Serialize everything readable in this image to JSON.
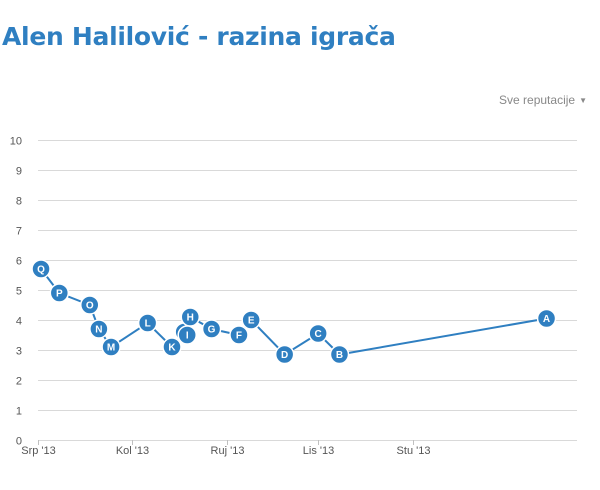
{
  "page": {
    "title": "Alen Halilović - razina igrača"
  },
  "filter": {
    "label": "Sve reputacije"
  },
  "chart_data": {
    "type": "line",
    "title": "",
    "xlabel": "",
    "ylabel": "",
    "ylim": [
      0,
      10
    ],
    "yticks": [
      0,
      1,
      2,
      3,
      4,
      5,
      6,
      7,
      8,
      9,
      10
    ],
    "xlim": [
      "2013-07-01",
      "2013-12-25"
    ],
    "xticks": [
      {
        "label": "Srp '13",
        "date": "2013-07-01"
      },
      {
        "label": "Kol '13",
        "date": "2013-08-01"
      },
      {
        "label": "Ruj '13",
        "date": "2013-09-01"
      },
      {
        "label": "Lis '13",
        "date": "2013-10-01"
      },
      {
        "label": "Stu '13",
        "date": "2013-11-01"
      }
    ],
    "grid": true,
    "legend": "none",
    "line_color": "#2f7fc1",
    "marker_color": "#2f7fc1",
    "series": [
      {
        "points": [
          {
            "label": "Q",
            "date": "2013-07-02",
            "y": 5.7
          },
          {
            "label": "P",
            "date": "2013-07-08",
            "y": 4.9
          },
          {
            "label": "O",
            "date": "2013-07-18",
            "y": 4.5
          },
          {
            "label": "N",
            "date": "2013-07-21",
            "y": 3.7
          },
          {
            "label": "M",
            "date": "2013-07-25",
            "y": 3.1
          },
          {
            "label": "L",
            "date": "2013-08-06",
            "y": 3.9
          },
          {
            "label": "K",
            "date": "2013-08-14",
            "y": 3.1
          },
          {
            "label": "J",
            "date": "2013-08-18",
            "y": 3.6
          },
          {
            "label": "I",
            "date": "2013-08-19",
            "y": 3.5
          },
          {
            "label": "H",
            "date": "2013-08-20",
            "y": 4.1
          },
          {
            "label": "G",
            "date": "2013-08-27",
            "y": 3.7
          },
          {
            "label": "F",
            "date": "2013-09-05",
            "y": 3.5
          },
          {
            "label": "E",
            "date": "2013-09-09",
            "y": 4.0
          },
          {
            "label": "D",
            "date": "2013-09-20",
            "y": 2.85
          },
          {
            "label": "C",
            "date": "2013-10-01",
            "y": 3.55
          },
          {
            "label": "B",
            "date": "2013-10-08",
            "y": 2.85
          },
          {
            "label": "A",
            "date": "2013-12-15",
            "y": 4.05
          }
        ]
      }
    ]
  }
}
